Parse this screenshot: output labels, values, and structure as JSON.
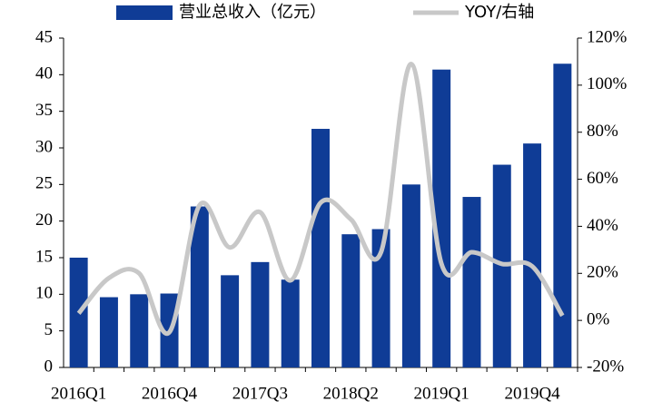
{
  "chart_data": {
    "type": "bar-line",
    "categories": [
      "2016Q1",
      null,
      null,
      "2016Q4",
      null,
      null,
      "2017Q3",
      null,
      null,
      "2018Q2",
      null,
      null,
      "2019Q1",
      null,
      null,
      "2019Q4",
      null
    ],
    "series": [
      {
        "name": "营业总收入（亿元）",
        "color": "#0f3c96",
        "type": "bar",
        "values": [
          15,
          9.6,
          10,
          10.1,
          22,
          12.6,
          14.4,
          12,
          32.6,
          18.2,
          18.9,
          25,
          40.7,
          23.3,
          27.7,
          30.6,
          41.5
        ]
      },
      {
        "name": "YOY/右轴",
        "color": "#c8c8c8",
        "type": "line",
        "axis": "y2",
        "values": [
          3,
          18,
          20,
          -5,
          49,
          31,
          46,
          17,
          50,
          43,
          29,
          109,
          24,
          29,
          24,
          23,
          2
        ]
      }
    ],
    "ylim": [
      0,
      45
    ],
    "yticks": [
      0,
      5,
      10,
      15,
      20,
      25,
      30,
      35,
      40,
      45
    ],
    "y2lim": [
      -20,
      120
    ],
    "y2ticks": [
      {
        "value": -20,
        "label": "-20%"
      },
      {
        "value": 0,
        "label": "0%"
      },
      {
        "value": 20,
        "label": "20%"
      },
      {
        "value": 40,
        "label": "40%"
      },
      {
        "value": 60,
        "label": "60%"
      },
      {
        "value": 80,
        "label": "80%"
      },
      {
        "value": 100,
        "label": "100%"
      },
      {
        "value": 120,
        "label": "120%"
      }
    ]
  }
}
